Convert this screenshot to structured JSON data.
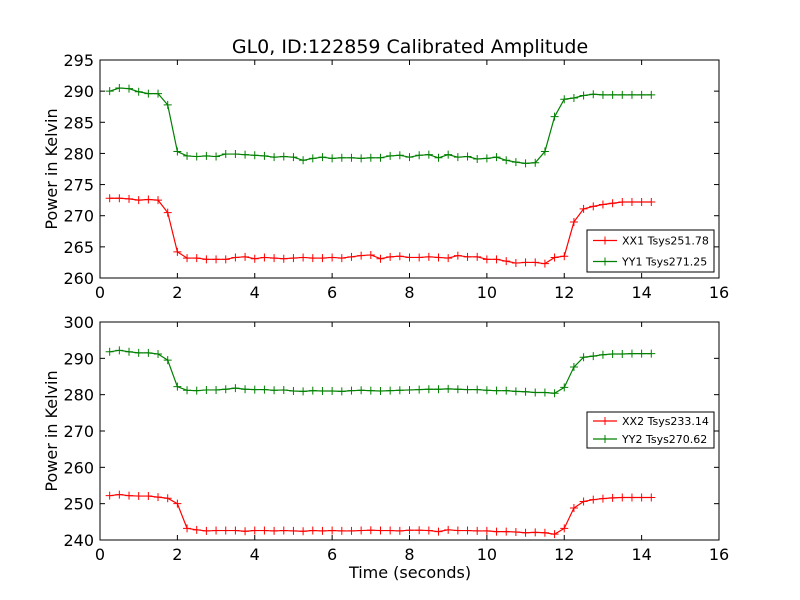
{
  "figure": {
    "title": "GL0, ID:122859 Calibrated Amplitude",
    "xlabel": "Time (seconds)",
    "ylabel": "Power in Kelvin"
  },
  "colors": {
    "red": "#ff0000",
    "green": "#008000",
    "axis": "#000000",
    "background": "#ffffff"
  },
  "chart_data": [
    {
      "type": "line",
      "xlabel": "",
      "ylabel": "Power in Kelvin",
      "xlim": [
        0,
        16
      ],
      "ylim": [
        260,
        295
      ],
      "xticks": [
        0,
        2,
        4,
        6,
        8,
        10,
        12,
        14,
        16
      ],
      "yticks": [
        260,
        265,
        270,
        275,
        280,
        285,
        290,
        295
      ],
      "grid": false,
      "legend": "lower-right",
      "marker": "plus",
      "x": [
        0.25,
        0.5,
        0.75,
        1.0,
        1.25,
        1.5,
        1.75,
        2.0,
        2.25,
        2.5,
        2.75,
        3.0,
        3.25,
        3.5,
        3.75,
        4.0,
        4.25,
        4.5,
        4.75,
        5.0,
        5.25,
        5.5,
        5.75,
        6.0,
        6.25,
        6.5,
        6.75,
        7.0,
        7.25,
        7.5,
        7.75,
        8.0,
        8.25,
        8.5,
        8.75,
        9.0,
        9.25,
        9.5,
        9.75,
        10.0,
        10.25,
        10.5,
        10.75,
        11.0,
        11.25,
        11.5,
        11.75,
        12.0,
        12.25,
        12.5,
        12.75,
        13.0,
        13.25,
        13.5,
        13.75,
        14.0,
        14.25
      ],
      "series": [
        {
          "name": "XX1 Tsys251.78",
          "color": "#ff0000",
          "values": [
            272.8,
            272.8,
            272.7,
            272.5,
            272.6,
            272.5,
            270.5,
            264.2,
            263.2,
            263.2,
            263.0,
            263.0,
            263.0,
            263.3,
            263.4,
            263.1,
            263.3,
            263.2,
            263.1,
            263.2,
            263.3,
            263.2,
            263.2,
            263.3,
            263.2,
            263.4,
            263.6,
            263.7,
            263.1,
            263.4,
            263.5,
            263.3,
            263.3,
            263.4,
            263.3,
            263.2,
            263.6,
            263.4,
            263.4,
            263.0,
            263.0,
            262.7,
            262.4,
            262.5,
            262.5,
            262.3,
            263.3,
            263.5,
            269.0,
            271.1,
            271.5,
            271.8,
            272.0,
            272.2,
            272.2,
            272.2,
            272.2
          ]
        },
        {
          "name": "YY1 Tsys271.25",
          "color": "#008000",
          "values": [
            290.0,
            290.5,
            290.4,
            289.9,
            289.6,
            289.6,
            287.8,
            280.3,
            279.6,
            279.5,
            279.6,
            279.5,
            279.9,
            279.9,
            279.8,
            279.7,
            279.6,
            279.4,
            279.5,
            279.4,
            278.9,
            279.2,
            279.4,
            279.2,
            279.3,
            279.3,
            279.2,
            279.3,
            279.3,
            279.6,
            279.7,
            279.4,
            279.7,
            279.8,
            279.3,
            279.8,
            279.4,
            279.5,
            279.1,
            279.2,
            279.4,
            278.9,
            278.6,
            278.4,
            278.5,
            280.3,
            285.9,
            288.7,
            288.9,
            289.3,
            289.5,
            289.4,
            289.4,
            289.4,
            289.4,
            289.4,
            289.4
          ]
        }
      ]
    },
    {
      "type": "line",
      "xlabel": "Time (seconds)",
      "ylabel": "Power in Kelvin",
      "xlim": [
        0,
        16
      ],
      "ylim": [
        240,
        300
      ],
      "xticks": [
        0,
        2,
        4,
        6,
        8,
        10,
        12,
        14,
        16
      ],
      "yticks": [
        240,
        250,
        260,
        270,
        280,
        290,
        300
      ],
      "grid": false,
      "legend": "center-right",
      "marker": "plus",
      "x": [
        0.25,
        0.5,
        0.75,
        1.0,
        1.25,
        1.5,
        1.75,
        2.0,
        2.25,
        2.5,
        2.75,
        3.0,
        3.25,
        3.5,
        3.75,
        4.0,
        4.25,
        4.5,
        4.75,
        5.0,
        5.25,
        5.5,
        5.75,
        6.0,
        6.25,
        6.5,
        6.75,
        7.0,
        7.25,
        7.5,
        7.75,
        8.0,
        8.25,
        8.5,
        8.75,
        9.0,
        9.25,
        9.5,
        9.75,
        10.0,
        10.25,
        10.5,
        10.75,
        11.0,
        11.25,
        11.5,
        11.75,
        12.0,
        12.25,
        12.5,
        12.75,
        13.0,
        13.25,
        13.5,
        13.75,
        14.0,
        14.25
      ],
      "series": [
        {
          "name": "XX2 Tsys233.14",
          "color": "#ff0000",
          "values": [
            252.2,
            252.5,
            252.2,
            252.1,
            252.1,
            251.8,
            251.5,
            250.0,
            243.2,
            242.8,
            242.5,
            242.6,
            242.6,
            242.6,
            242.4,
            242.6,
            242.6,
            242.5,
            242.6,
            242.5,
            242.4,
            242.6,
            242.5,
            242.6,
            242.5,
            242.5,
            242.6,
            242.7,
            242.6,
            242.6,
            242.5,
            242.7,
            242.7,
            242.6,
            242.3,
            242.8,
            242.6,
            242.6,
            242.5,
            242.5,
            242.3,
            242.3,
            242.2,
            242.0,
            242.1,
            242.0,
            241.6,
            243.2,
            248.8,
            250.6,
            251.1,
            251.4,
            251.6,
            251.7,
            251.7,
            251.7,
            251.7
          ]
        },
        {
          "name": "YY2 Tsys270.62",
          "color": "#008000",
          "values": [
            291.8,
            292.2,
            291.8,
            291.5,
            291.5,
            291.2,
            289.5,
            282.2,
            281.2,
            281.1,
            281.3,
            281.3,
            281.5,
            281.8,
            281.5,
            281.4,
            281.4,
            281.2,
            281.3,
            281.0,
            280.9,
            281.1,
            281.0,
            281.0,
            280.9,
            281.1,
            281.2,
            281.1,
            281.0,
            281.1,
            281.2,
            281.3,
            281.4,
            281.5,
            281.5,
            281.6,
            281.5,
            281.4,
            281.4,
            281.2,
            281.1,
            281.1,
            280.9,
            280.8,
            280.6,
            280.6,
            280.4,
            282.0,
            287.6,
            290.3,
            290.6,
            291.0,
            291.2,
            291.2,
            291.3,
            291.3,
            291.3
          ]
        }
      ]
    }
  ]
}
